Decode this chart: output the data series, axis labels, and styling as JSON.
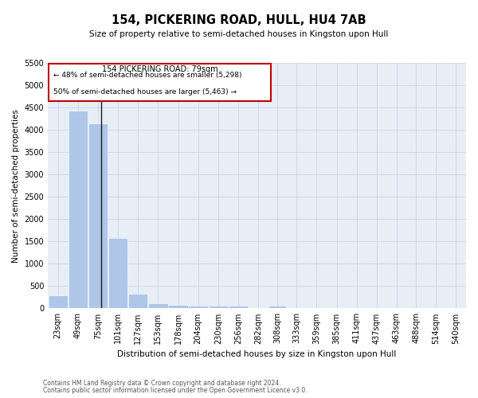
{
  "title": "154, PICKERING ROAD, HULL, HU4 7AB",
  "subtitle": "Size of property relative to semi-detached houses in Kingston upon Hull",
  "xlabel": "Distribution of semi-detached houses by size in Kingston upon Hull",
  "ylabel": "Number of semi-detached properties",
  "footnote1": "Contains HM Land Registry data © Crown copyright and database right 2024.",
  "footnote2": "Contains public sector information licensed under the Open Government Licence v3.0.",
  "annotation_title": "154 PICKERING ROAD: 79sqm",
  "annotation_line1": "← 48% of semi-detached houses are smaller (5,298)",
  "annotation_line2": "50% of semi-detached houses are larger (5,463) →",
  "property_size": 79,
  "bar_labels": [
    "23sqm",
    "49sqm",
    "75sqm",
    "101sqm",
    "127sqm",
    "153sqm",
    "178sqm",
    "204sqm",
    "230sqm",
    "256sqm",
    "282sqm",
    "308sqm",
    "333sqm",
    "359sqm",
    "385sqm",
    "411sqm",
    "437sqm",
    "463sqm",
    "488sqm",
    "514sqm",
    "540sqm"
  ],
  "bar_values": [
    290,
    4430,
    4150,
    1570,
    330,
    120,
    80,
    60,
    60,
    60,
    0,
    60,
    0,
    0,
    0,
    0,
    0,
    0,
    0,
    0,
    0
  ],
  "bin_edges": [
    10,
    36,
    62,
    88,
    114,
    140,
    166,
    192,
    218,
    244,
    270,
    296,
    320,
    346,
    372,
    398,
    424,
    450,
    475,
    501,
    527,
    553
  ],
  "bar_color": "#aec6e8",
  "highlight_color": "#c00000",
  "property_line_color": "#1a1a1a",
  "grid_color": "#c8d4e8",
  "bg_color": "#e8eef6",
  "ylim": [
    0,
    5500
  ],
  "yticks": [
    0,
    500,
    1000,
    1500,
    2000,
    2500,
    3000,
    3500,
    4000,
    4500,
    5000,
    5500
  ],
  "title_fontsize": 10.5,
  "subtitle_fontsize": 7.5,
  "xlabel_fontsize": 7.5,
  "ylabel_fontsize": 7.5,
  "tick_fontsize": 7,
  "annot_title_fontsize": 7,
  "annot_line_fontsize": 6.5,
  "footnote_fontsize": 5.5
}
